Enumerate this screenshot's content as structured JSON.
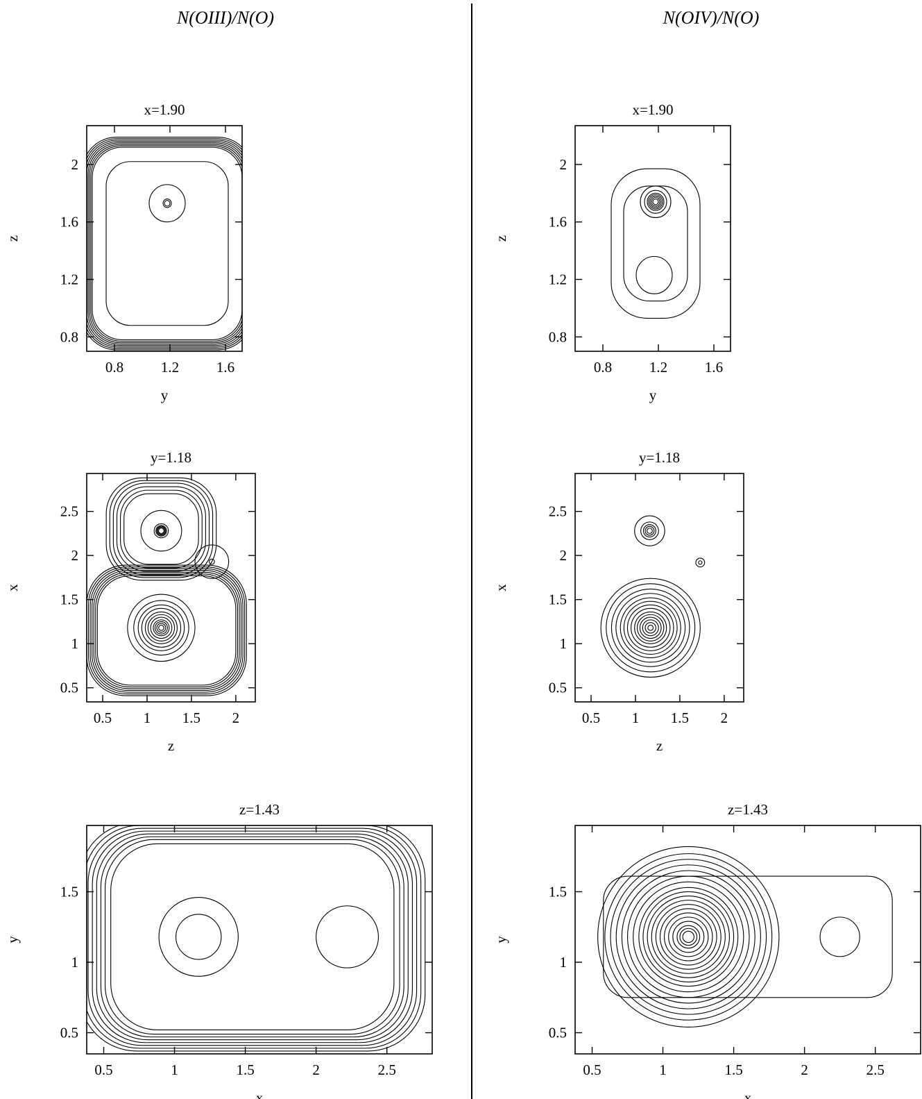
{
  "figure": {
    "columns": [
      {
        "title": "N(OIII)/N(O)"
      },
      {
        "title": "N(OIV)/N(O)"
      }
    ]
  },
  "chart_data": [
    {
      "type": "contour",
      "column": "N(OIII)/N(O)",
      "title": "x=1.90",
      "xlabel": "y",
      "ylabel": "z",
      "xlim": [
        0.6,
        1.72
      ],
      "ylim": [
        0.7,
        2.27
      ],
      "xticks": [
        0.8,
        1.2,
        1.6
      ],
      "xticklabels": [
        "0.8",
        "1.2",
        "1.6"
      ],
      "yticks": [
        0.8,
        1.2,
        1.6,
        2
      ],
      "yticklabels": [
        "0.8",
        "1.2",
        "1.6",
        "2"
      ],
      "features": [
        {
          "kind": "shell",
          "center": [
            1.18,
            1.45
          ],
          "rx": [
            0.44,
            0.54,
            0.55,
            0.56,
            0.57,
            0.58,
            0.59,
            0.6,
            0.61
          ],
          "ry": [
            0.57,
            0.67,
            0.68,
            0.69,
            0.7,
            0.71,
            0.72,
            0.73,
            0.74
          ],
          "squareness": 0.6
        },
        {
          "kind": "peak",
          "center": [
            1.18,
            1.73
          ],
          "radii": [
            0.13,
            0.03,
            0.02
          ]
        }
      ]
    },
    {
      "type": "contour",
      "column": "N(OIII)/N(O)",
      "title": "y=1.18",
      "xlabel": "z",
      "ylabel": "x",
      "xlim": [
        0.32,
        2.22
      ],
      "ylim": [
        0.34,
        2.93
      ],
      "xticks": [
        0.5,
        1,
        1.5,
        2
      ],
      "xticklabels": [
        "0.5",
        "1",
        "1.5",
        "2"
      ],
      "yticks": [
        0.5,
        1,
        1.5,
        2,
        2.5
      ],
      "yticklabels": [
        "0.5",
        "1",
        "1.5",
        "2",
        "2.5"
      ],
      "features": [
        {
          "kind": "shell",
          "center": [
            1.22,
            1.15
          ],
          "rx": [
            0.78,
            0.8,
            0.82,
            0.84,
            0.86,
            0.88,
            0.9
          ],
          "ry": [
            0.62,
            0.64,
            0.66,
            0.68,
            0.7,
            0.72,
            0.74
          ],
          "squareness": 0.4
        },
        {
          "kind": "shell",
          "center": [
            1.16,
            2.3
          ],
          "rx": [
            0.42,
            0.46,
            0.5,
            0.54,
            0.58,
            0.62
          ],
          "ry": [
            0.4,
            0.44,
            0.48,
            0.52,
            0.55,
            0.58
          ],
          "squareness": 0.3
        },
        {
          "kind": "peak",
          "center": [
            1.16,
            2.28
          ],
          "radii": [
            0.23,
            0.08,
            0.06,
            0.05,
            0.04,
            0.03
          ]
        },
        {
          "kind": "peak",
          "center": [
            1.73,
            1.93
          ],
          "radii": [
            0.19,
            0.03
          ]
        },
        {
          "kind": "peak",
          "center": [
            1.16,
            1.18
          ],
          "radii": [
            0.38,
            0.31,
            0.26,
            0.22,
            0.18,
            0.15,
            0.12,
            0.09,
            0.07,
            0.05,
            0.03
          ]
        }
      ]
    },
    {
      "type": "contour",
      "column": "N(OIII)/N(O)",
      "title": "z=1.43",
      "xlabel": "x",
      "ylabel": "y",
      "xlim": [
        0.38,
        2.82
      ],
      "ylim": [
        0.35,
        1.97
      ],
      "xticks": [
        0.5,
        1,
        1.5,
        2,
        2.5
      ],
      "xticklabels": [
        "0.5",
        "1",
        "1.5",
        "2",
        "2.5"
      ],
      "yticks": [
        0.5,
        1,
        1.5
      ],
      "yticklabels": [
        "0.5",
        "1",
        "1.5"
      ],
      "features": [
        {
          "kind": "shell",
          "center": [
            1.55,
            1.18
          ],
          "rx": [
            1.0,
            1.04,
            1.07,
            1.1,
            1.13,
            1.16,
            1.19,
            1.22
          ],
          "ry": [
            0.66,
            0.69,
            0.71,
            0.73,
            0.75,
            0.77,
            0.79,
            0.81
          ],
          "squareness": 0.5
        },
        {
          "kind": "peak",
          "center": [
            1.17,
            1.18
          ],
          "radii": [
            0.28,
            0.16
          ]
        },
        {
          "kind": "peak",
          "center": [
            2.22,
            1.18
          ],
          "radii": [
            0.22
          ]
        }
      ]
    },
    {
      "type": "contour",
      "column": "N(OIV)/N(O)",
      "title": "x=1.90",
      "xlabel": "y",
      "ylabel": "z",
      "xlim": [
        0.6,
        1.72
      ],
      "ylim": [
        0.7,
        2.27
      ],
      "xticks": [
        0.8,
        1.2,
        1.6
      ],
      "xticklabels": [
        "0.8",
        "1.2",
        "1.6"
      ],
      "yticks": [
        0.8,
        1.2,
        1.6,
        2
      ],
      "yticklabels": [
        "0.8",
        "1.2",
        "1.6",
        "2"
      ],
      "features": [
        {
          "kind": "shell",
          "center": [
            1.18,
            1.45
          ],
          "rx": [
            0.23,
            0.32
          ],
          "ry": [
            0.4,
            0.52
          ],
          "squareness": 0.2
        },
        {
          "kind": "peak",
          "center": [
            1.17,
            1.23
          ],
          "radii": [
            0.13
          ]
        },
        {
          "kind": "peak",
          "center": [
            1.18,
            1.74
          ],
          "radii": [
            0.11,
            0.08,
            0.06,
            0.05,
            0.04,
            0.03,
            0.02
          ]
        }
      ]
    },
    {
      "type": "contour",
      "column": "N(OIV)/N(O)",
      "title": "y=1.18",
      "xlabel": "z",
      "ylabel": "x",
      "xlim": [
        0.32,
        2.22
      ],
      "ylim": [
        0.34,
        2.93
      ],
      "xticks": [
        0.5,
        1,
        1.5,
        2
      ],
      "xticklabels": [
        "0.5",
        "1",
        "1.5",
        "2"
      ],
      "yticks": [
        0.5,
        1,
        1.5,
        2,
        2.5
      ],
      "yticklabels": [
        "0.5",
        "1",
        "1.5",
        "2",
        "2.5"
      ],
      "features": [
        {
          "kind": "peak",
          "center": [
            1.16,
            2.28
          ],
          "radii": [
            0.17,
            0.1,
            0.07,
            0.05,
            0.03
          ]
        },
        {
          "kind": "peak",
          "center": [
            1.73,
            1.92
          ],
          "radii": [
            0.05,
            0.02
          ]
        },
        {
          "kind": "peak",
          "center": [
            1.17,
            1.18
          ],
          "radii": [
            0.56,
            0.5,
            0.44,
            0.39,
            0.34,
            0.3,
            0.26,
            0.22,
            0.18,
            0.15,
            0.12,
            0.09,
            0.06,
            0.03
          ]
        }
      ]
    },
    {
      "type": "contour",
      "column": "N(OIV)/N(O)",
      "title": "z=1.43",
      "xlabel": "x",
      "ylabel": "y",
      "xlim": [
        0.38,
        2.82
      ],
      "ylim": [
        0.35,
        1.97
      ],
      "xticks": [
        0.5,
        1,
        1.5,
        2,
        2.5
      ],
      "xticklabels": [
        "0.5",
        "1",
        "1.5",
        "2",
        "2.5"
      ],
      "yticks": [
        0.5,
        1,
        1.5
      ],
      "yticklabels": [
        "0.5",
        "1",
        "1.5"
      ],
      "features": [
        {
          "kind": "shell",
          "center": [
            1.6,
            1.18
          ],
          "rx": [
            1.02
          ],
          "ry": [
            0.43
          ],
          "squareness": 0.6
        },
        {
          "kind": "peak",
          "center": [
            2.25,
            1.18
          ],
          "radii": [
            0.14
          ]
        },
        {
          "kind": "peak",
          "center": [
            1.18,
            1.18
          ],
          "radii": [
            0.64,
            0.59,
            0.55,
            0.51,
            0.47,
            0.43,
            0.39,
            0.35,
            0.32,
            0.29,
            0.26,
            0.23,
            0.2,
            0.17,
            0.14,
            0.11,
            0.08,
            0.06,
            0.04
          ]
        }
      ]
    }
  ]
}
